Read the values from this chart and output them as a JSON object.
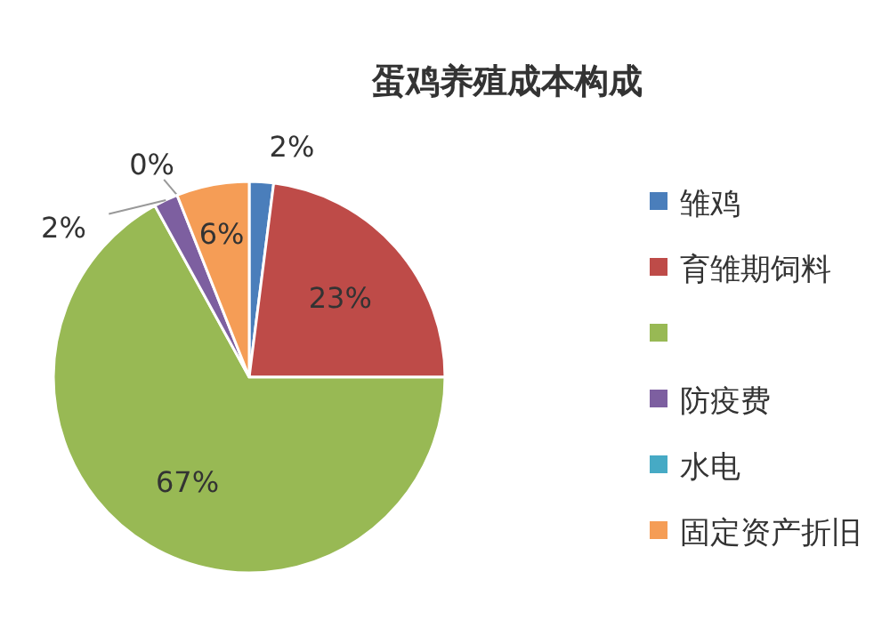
{
  "chart_data": {
    "type": "pie",
    "title": "蛋鸡养殖成本构成",
    "categories": [
      "雏鸡",
      "育雏期饲料",
      null,
      "防疫费",
      "水电",
      "固定资产折旧"
    ],
    "values": [
      2,
      23,
      67,
      2,
      0,
      6
    ],
    "colors": [
      "#4a7ebb",
      "#be4b48",
      "#98b954",
      "#7d5fa0",
      "#46aac5",
      "#f59d56"
    ],
    "value_labels": [
      "2%",
      "23%",
      "67%",
      "2%",
      "0%",
      "6%"
    ],
    "legend": "right"
  }
}
